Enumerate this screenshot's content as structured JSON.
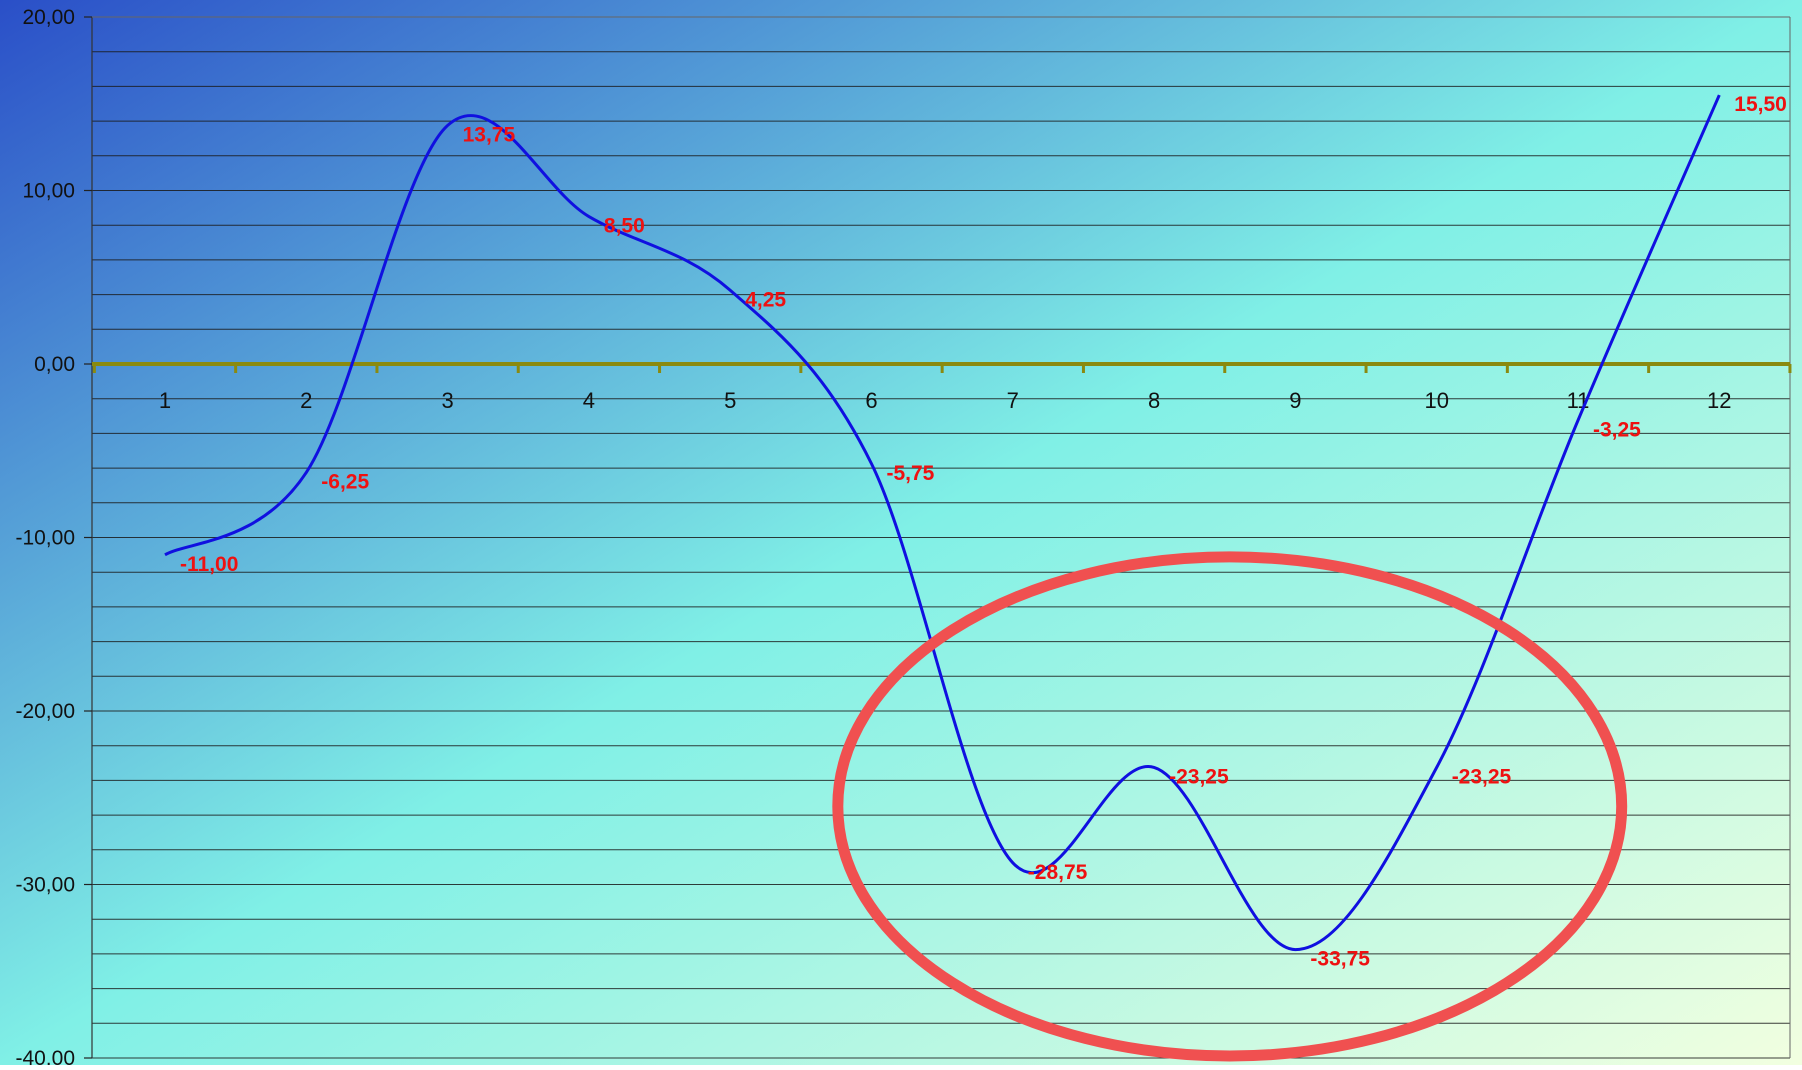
{
  "chart_data": {
    "type": "line",
    "title": "",
    "xlabel": "",
    "ylabel": "",
    "categories": [
      "1",
      "2",
      "3",
      "4",
      "5",
      "6",
      "7",
      "8",
      "9",
      "10",
      "11",
      "12"
    ],
    "x": [
      1,
      2,
      3,
      4,
      5,
      6,
      7,
      8,
      9,
      10,
      11,
      12
    ],
    "series": [
      {
        "values": [
          -11.0,
          -6.25,
          13.75,
          8.5,
          4.25,
          -5.75,
          -28.75,
          -23.25,
          -33.75,
          -23.25,
          -3.25,
          15.5
        ],
        "data_labels": [
          "-11,00",
          "-6,25",
          "13,75",
          "8,50",
          "4,25",
          "-5,75",
          "-28,75",
          "-23,25",
          "-33,75",
          "-23,25",
          "-3,25",
          "15,50"
        ],
        "color": "#1010e0",
        "smoothed": true
      }
    ],
    "ylim": [
      -40,
      20
    ],
    "y_ticks": [
      20,
      10,
      0,
      -10,
      -20,
      -30,
      -40
    ],
    "y_tick_labels": [
      "20,00",
      "10,00",
      "0,00",
      "-10,00",
      "-20,00",
      "-30,00",
      "-40,00"
    ],
    "y_minor_step": 2,
    "grid": true,
    "legend": "none",
    "annotation": {
      "shape": "ellipse",
      "color": "#f05050",
      "encloses_categories": [
        "7",
        "8",
        "9",
        "10"
      ]
    },
    "colors": {
      "line": "#1010e0",
      "data_label": "#ee1111",
      "x_axis": "#8a8a10",
      "grid": "#1a1a1a",
      "annotation": "#f05050",
      "background_top_left": "#2a4fc8",
      "background_mid": "#80f0e6",
      "background_bottom_right": "#f2ffe0"
    }
  }
}
